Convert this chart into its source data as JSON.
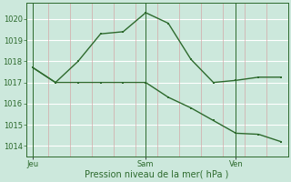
{
  "line1_x": [
    0,
    1,
    2,
    3,
    4,
    5,
    6,
    7,
    8,
    9,
    10,
    11
  ],
  "line1_y": [
    1017.7,
    1017.0,
    1018.0,
    1019.3,
    1019.4,
    1020.3,
    1019.8,
    1018.1,
    1017.0,
    1017.1,
    1017.25,
    1017.25
  ],
  "line2_x": [
    0,
    1,
    2,
    3,
    4,
    5,
    6,
    7,
    8,
    9,
    10,
    11
  ],
  "line2_y": [
    1017.7,
    1017.0,
    1017.0,
    1017.0,
    1017.0,
    1017.0,
    1016.3,
    1015.8,
    1015.2,
    1014.6,
    1014.55,
    1014.2
  ],
  "jeu_x": 0,
  "sam_x": 5,
  "ven_x": 9,
  "xlim": [
    -0.3,
    11.3
  ],
  "ylim": [
    1013.5,
    1020.75
  ],
  "ytick_positions": [
    1014,
    1015,
    1016,
    1017,
    1018,
    1019,
    1020
  ],
  "xlabel": "Pression niveau de la mer( hPa )",
  "line_color": "#2d6a2d",
  "bg_color": "#cce8dc",
  "fig_bg": "#cce8dc",
  "hgrid_color": "#ffffff",
  "vgrid_color": "#d4a8a8"
}
